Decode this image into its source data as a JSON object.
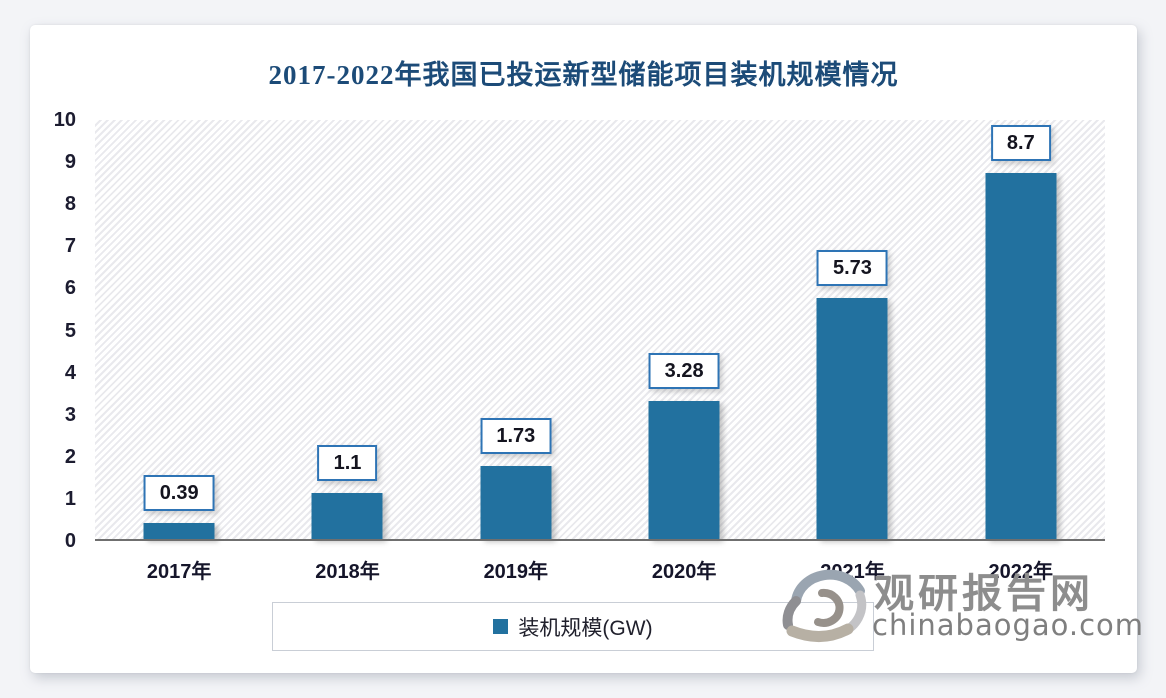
{
  "title": "2017-2022年我国已投运新型储能项目装机规模情况",
  "chart_data": {
    "type": "bar",
    "title": "2017-2022年我国已投运新型储能项目装机规模情况",
    "categories": [
      "2017年",
      "2018年",
      "2019年",
      "2020年",
      "2021年",
      "2022年"
    ],
    "values": [
      0.39,
      1.1,
      1.73,
      3.28,
      5.73,
      8.7
    ],
    "value_labels": [
      "0.39",
      "1.1",
      "1.73",
      "3.28",
      "5.73",
      "8.7"
    ],
    "series_name": "装机规模(GW)",
    "xlabel": "",
    "ylabel": "",
    "ylim": [
      0,
      10
    ],
    "yticks": [
      0,
      1,
      2,
      3,
      4,
      5,
      6,
      7,
      8,
      9,
      10
    ],
    "grid": false,
    "plot_background": "diagonal-hatch",
    "legend_position": "bottom",
    "data_label_style": "boxed-above-bar"
  },
  "legend": {
    "marker": "blue-square",
    "label": "装机规模(GW)"
  },
  "colors": {
    "bar": "#22719F",
    "title_text": "#1C4B78",
    "value_label_border": "#2E74B5",
    "axis_text": "#1B1B2E",
    "watermark_gray": "#8D8D8D"
  },
  "watermark": {
    "logo": "globe-swirl-logo",
    "site_name": "观研报告网",
    "site_url": "chinabaogao.com"
  }
}
